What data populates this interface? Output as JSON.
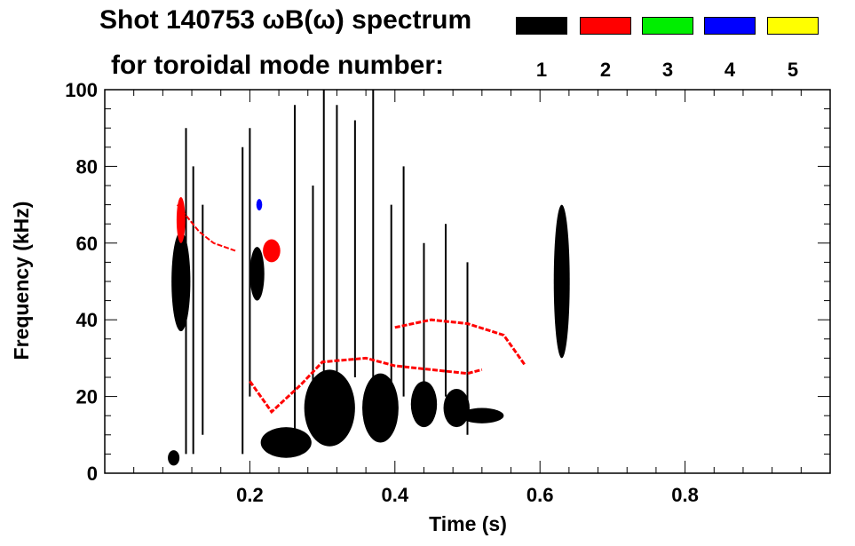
{
  "chart_data": {
    "type": "heatmap",
    "title_line1": "Shot 140753 ωB(ω) spectrum",
    "title_line2": "for toroidal mode number:",
    "xlabel": "Time (s)",
    "ylabel": "Frequency (kHz)",
    "xlim": [
      0.0,
      1.0
    ],
    "ylim": [
      0,
      100
    ],
    "xticks": [
      {
        "v": 0.2,
        "label": "0.2"
      },
      {
        "v": 0.4,
        "label": "0.4"
      },
      {
        "v": 0.6,
        "label": "0.6"
      },
      {
        "v": 0.8,
        "label": "0.8"
      }
    ],
    "yticks": [
      {
        "v": 0,
        "label": "0"
      },
      {
        "v": 20,
        "label": "20"
      },
      {
        "v": 40,
        "label": "40"
      },
      {
        "v": 60,
        "label": "60"
      },
      {
        "v": 80,
        "label": "80"
      },
      {
        "v": 100,
        "label": "100"
      }
    ],
    "legend": [
      {
        "label": "1",
        "color": "#000000"
      },
      {
        "label": "2",
        "color": "#ff0000"
      },
      {
        "label": "3",
        "color": "#00ee00"
      },
      {
        "label": "4",
        "color": "#0000ff"
      },
      {
        "label": "5",
        "color": "#ffff00"
      }
    ],
    "mode_regions": [
      {
        "mode": 1,
        "color": "#000000",
        "shape": "ellipse",
        "t": 0.105,
        "f": 50,
        "dt": 0.013,
        "df": 13
      },
      {
        "mode": 1,
        "color": "#000000",
        "shape": "ellipse",
        "t": 0.21,
        "f": 52,
        "dt": 0.01,
        "df": 7
      },
      {
        "mode": 1,
        "color": "#000000",
        "shape": "ellipse",
        "t": 0.63,
        "f": 50,
        "dt": 0.011,
        "df": 20
      },
      {
        "mode": 1,
        "color": "#000000",
        "shape": "ellipse",
        "t": 0.31,
        "f": 17,
        "dt": 0.035,
        "df": 10
      },
      {
        "mode": 1,
        "color": "#000000",
        "shape": "ellipse",
        "t": 0.38,
        "f": 17,
        "dt": 0.025,
        "df": 9
      },
      {
        "mode": 1,
        "color": "#000000",
        "shape": "ellipse",
        "t": 0.44,
        "f": 18,
        "dt": 0.018,
        "df": 6
      },
      {
        "mode": 1,
        "color": "#000000",
        "shape": "ellipse",
        "t": 0.485,
        "f": 17,
        "dt": 0.018,
        "df": 5
      },
      {
        "mode": 1,
        "color": "#000000",
        "shape": "ellipse",
        "t": 0.25,
        "f": 8,
        "dt": 0.035,
        "df": 4
      },
      {
        "mode": 1,
        "color": "#000000",
        "shape": "ellipse",
        "t": 0.52,
        "f": 15,
        "dt": 0.03,
        "df": 2
      },
      {
        "mode": 1,
        "color": "#000000",
        "shape": "ellipse",
        "t": 0.095,
        "f": 4,
        "dt": 0.008,
        "df": 2
      },
      {
        "mode": 2,
        "color": "#ff0000",
        "shape": "ellipse",
        "t": 0.23,
        "f": 58,
        "dt": 0.012,
        "df": 3
      },
      {
        "mode": 2,
        "color": "#ff0000",
        "shape": "ellipse",
        "t": 0.105,
        "f": 66,
        "dt": 0.006,
        "df": 6
      },
      {
        "mode": 4,
        "color": "#0000ff",
        "shape": "ellipse",
        "t": 0.213,
        "f": 70,
        "dt": 0.004,
        "df": 1.5
      }
    ],
    "mode_lines": [
      {
        "mode": 2,
        "color": "#ff0000",
        "width": 3,
        "points": [
          [
            0.2,
            24
          ],
          [
            0.23,
            16
          ],
          [
            0.27,
            23
          ],
          [
            0.3,
            29
          ],
          [
            0.36,
            30
          ],
          [
            0.4,
            28
          ],
          [
            0.45,
            27
          ],
          [
            0.5,
            26
          ],
          [
            0.52,
            27
          ]
        ]
      },
      {
        "mode": 2,
        "color": "#ff0000",
        "width": 3,
        "points": [
          [
            0.4,
            38
          ],
          [
            0.45,
            40
          ],
          [
            0.5,
            39
          ],
          [
            0.55,
            36
          ],
          [
            0.58,
            28
          ]
        ]
      },
      {
        "mode": 2,
        "color": "#ff0000",
        "width": 2,
        "points": [
          [
            0.1,
            70
          ],
          [
            0.13,
            63
          ],
          [
            0.15,
            60
          ],
          [
            0.18,
            58
          ]
        ]
      }
    ],
    "vertical_streaks": [
      {
        "t": 0.112,
        "f0": 5,
        "f1": 90
      },
      {
        "t": 0.122,
        "f0": 5,
        "f1": 80
      },
      {
        "t": 0.135,
        "f0": 10,
        "f1": 70
      },
      {
        "t": 0.19,
        "f0": 5,
        "f1": 85
      },
      {
        "t": 0.2,
        "f0": 20,
        "f1": 90
      },
      {
        "t": 0.262,
        "f0": 10,
        "f1": 96
      },
      {
        "t": 0.287,
        "f0": 15,
        "f1": 75
      },
      {
        "t": 0.302,
        "f0": 10,
        "f1": 100
      },
      {
        "t": 0.32,
        "f0": 15,
        "f1": 96
      },
      {
        "t": 0.345,
        "f0": 25,
        "f1": 92
      },
      {
        "t": 0.37,
        "f0": 15,
        "f1": 100
      },
      {
        "t": 0.395,
        "f0": 15,
        "f1": 70
      },
      {
        "t": 0.412,
        "f0": 20,
        "f1": 80
      },
      {
        "t": 0.44,
        "f0": 15,
        "f1": 60
      },
      {
        "t": 0.47,
        "f0": 20,
        "f1": 65
      },
      {
        "t": 0.5,
        "f0": 10,
        "f1": 55
      }
    ]
  }
}
